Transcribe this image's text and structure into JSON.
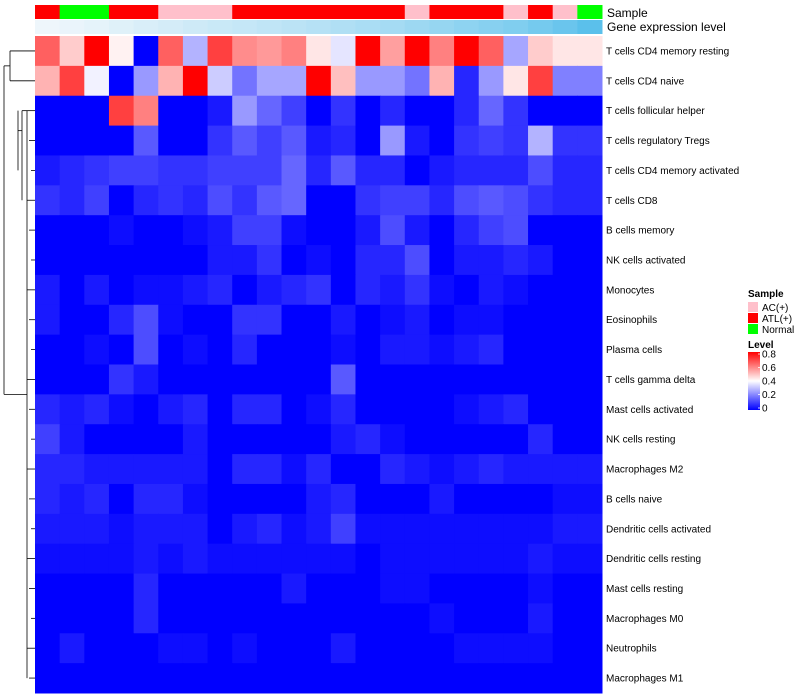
{
  "chart_data": {
    "type": "heatmap",
    "annotation_labels": {
      "sample": "Sample",
      "gene_expression": "Gene expression level"
    },
    "sample_groups": [
      "ATL(+)",
      "Normal",
      "Normal",
      "ATL(+)",
      "ATL(+)",
      "AC(+)",
      "AC(+)",
      "AC(+)",
      "ATL(+)",
      "ATL(+)",
      "ATL(+)",
      "ATL(+)",
      "ATL(+)",
      "ATL(+)",
      "ATL(+)",
      "AC(+)",
      "ATL(+)",
      "ATL(+)",
      "ATL(+)",
      "AC(+)",
      "ATL(+)",
      "AC(+)",
      "Normal"
    ],
    "gene_expression_level": [
      0.0,
      0.03,
      0.06,
      0.1,
      0.14,
      0.18,
      0.22,
      0.25,
      0.28,
      0.31,
      0.35,
      0.38,
      0.42,
      0.46,
      0.5,
      0.55,
      0.6,
      0.65,
      0.7,
      0.75,
      0.82,
      0.9,
      1.0
    ],
    "row_labels": [
      "T cells CD4 memory resting",
      "T cells CD4 naive",
      "T cells follicular helper",
      "T cells regulatory  Tregs",
      "T cells CD4 memory activated",
      "T cells CD8",
      "B cells memory",
      "NK cells activated",
      "Monocytes",
      "Eosinophils",
      "Plasma cells",
      "T cells gamma delta",
      "Mast cells activated",
      "NK cells resting",
      "Macrophages M2",
      "B cells naive",
      "Dendritic cells activated",
      "Dendritic cells resting",
      "Mast cells resting",
      "Macrophages M0",
      "Neutrophils",
      "Macrophages M1"
    ],
    "values": [
      [
        0.65,
        0.48,
        0.8,
        0.42,
        0.0,
        0.65,
        0.28,
        0.7,
        0.58,
        0.56,
        0.6,
        0.44,
        0.36,
        0.8,
        0.55,
        0.8,
        0.6,
        0.8,
        0.65,
        0.26,
        0.48,
        0.44,
        0.44
      ],
      [
        0.52,
        0.7,
        0.38,
        0.0,
        0.24,
        0.52,
        0.8,
        0.32,
        0.18,
        0.26,
        0.26,
        0.8,
        0.5,
        0.24,
        0.24,
        0.18,
        0.52,
        0.06,
        0.24,
        0.44,
        0.7,
        0.2,
        0.2
      ],
      [
        0.0,
        0.0,
        0.0,
        0.7,
        0.6,
        0.0,
        0.0,
        0.04,
        0.24,
        0.16,
        0.1,
        0.0,
        0.08,
        0.0,
        0.06,
        0.0,
        0.0,
        0.06,
        0.16,
        0.08,
        0.0,
        0.0,
        0.0
      ],
      [
        0.0,
        0.0,
        0.0,
        0.0,
        0.14,
        0.0,
        0.0,
        0.08,
        0.14,
        0.1,
        0.14,
        0.04,
        0.06,
        0.0,
        0.24,
        0.04,
        0.0,
        0.08,
        0.1,
        0.08,
        0.28,
        0.08,
        0.08
      ],
      [
        0.04,
        0.06,
        0.08,
        0.1,
        0.1,
        0.08,
        0.08,
        0.1,
        0.1,
        0.1,
        0.16,
        0.06,
        0.14,
        0.06,
        0.06,
        0.0,
        0.04,
        0.06,
        0.06,
        0.06,
        0.12,
        0.06,
        0.06
      ],
      [
        0.08,
        0.06,
        0.1,
        0.0,
        0.06,
        0.08,
        0.06,
        0.12,
        0.08,
        0.14,
        0.16,
        0.0,
        0.0,
        0.08,
        0.1,
        0.1,
        0.06,
        0.12,
        0.14,
        0.12,
        0.08,
        0.06,
        0.06
      ],
      [
        0.0,
        0.0,
        0.0,
        0.02,
        0.0,
        0.0,
        0.02,
        0.04,
        0.1,
        0.1,
        0.02,
        0.0,
        0.0,
        0.04,
        0.12,
        0.04,
        0.0,
        0.06,
        0.1,
        0.12,
        0.0,
        0.0,
        0.0
      ],
      [
        0.0,
        0.0,
        0.0,
        0.0,
        0.0,
        0.0,
        0.0,
        0.04,
        0.04,
        0.08,
        0.0,
        0.02,
        0.0,
        0.06,
        0.06,
        0.12,
        0.0,
        0.04,
        0.04,
        0.06,
        0.04,
        0.0,
        0.0
      ],
      [
        0.04,
        0.0,
        0.04,
        0.0,
        0.02,
        0.02,
        0.04,
        0.06,
        0.0,
        0.04,
        0.06,
        0.08,
        0.0,
        0.06,
        0.04,
        0.08,
        0.02,
        0.0,
        0.04,
        0.02,
        0.0,
        0.0,
        0.0
      ],
      [
        0.04,
        0.0,
        0.0,
        0.06,
        0.12,
        0.02,
        0.0,
        0.0,
        0.08,
        0.08,
        0.0,
        0.0,
        0.04,
        0.0,
        0.02,
        0.04,
        0.0,
        0.02,
        0.02,
        0.0,
        0.0,
        0.0,
        0.0
      ],
      [
        0.0,
        0.0,
        0.02,
        0.0,
        0.12,
        0.0,
        0.02,
        0.0,
        0.06,
        0.0,
        0.0,
        0.0,
        0.02,
        0.0,
        0.04,
        0.04,
        0.02,
        0.04,
        0.06,
        0.0,
        0.0,
        0.0,
        0.0
      ],
      [
        0.0,
        0.0,
        0.0,
        0.08,
        0.04,
        0.0,
        0.0,
        0.0,
        0.0,
        0.0,
        0.0,
        0.0,
        0.14,
        0.0,
        0.0,
        0.0,
        0.0,
        0.0,
        0.0,
        0.0,
        0.0,
        0.0,
        0.0
      ],
      [
        0.06,
        0.04,
        0.06,
        0.02,
        0.0,
        0.04,
        0.06,
        0.0,
        0.06,
        0.06,
        0.0,
        0.02,
        0.06,
        0.0,
        0.0,
        0.0,
        0.0,
        0.02,
        0.04,
        0.06,
        0.0,
        0.0,
        0.0
      ],
      [
        0.1,
        0.04,
        0.0,
        0.0,
        0.0,
        0.0,
        0.04,
        0.0,
        0.0,
        0.0,
        0.0,
        0.0,
        0.04,
        0.06,
        0.02,
        0.0,
        0.0,
        0.0,
        0.0,
        0.0,
        0.06,
        0.0,
        0.0
      ],
      [
        0.06,
        0.06,
        0.04,
        0.04,
        0.04,
        0.04,
        0.04,
        0.0,
        0.06,
        0.06,
        0.02,
        0.06,
        0.0,
        0.0,
        0.06,
        0.04,
        0.02,
        0.04,
        0.06,
        0.04,
        0.04,
        0.04,
        0.04
      ],
      [
        0.06,
        0.04,
        0.06,
        0.0,
        0.06,
        0.06,
        0.02,
        0.0,
        0.0,
        0.0,
        0.0,
        0.04,
        0.06,
        0.0,
        0.0,
        0.0,
        0.04,
        0.0,
        0.0,
        0.0,
        0.0,
        0.02,
        0.02
      ],
      [
        0.04,
        0.04,
        0.04,
        0.02,
        0.04,
        0.04,
        0.04,
        0.0,
        0.04,
        0.06,
        0.02,
        0.04,
        0.1,
        0.02,
        0.02,
        0.02,
        0.02,
        0.02,
        0.02,
        0.02,
        0.02,
        0.04,
        0.04
      ],
      [
        0.02,
        0.02,
        0.02,
        0.02,
        0.04,
        0.02,
        0.04,
        0.02,
        0.02,
        0.02,
        0.02,
        0.02,
        0.02,
        0.0,
        0.02,
        0.02,
        0.02,
        0.02,
        0.02,
        0.02,
        0.04,
        0.02,
        0.02
      ],
      [
        0.0,
        0.0,
        0.0,
        0.0,
        0.06,
        0.0,
        0.0,
        0.0,
        0.0,
        0.0,
        0.04,
        0.0,
        0.0,
        0.0,
        0.02,
        0.02,
        0.0,
        0.0,
        0.0,
        0.0,
        0.02,
        0.0,
        0.0
      ],
      [
        0.0,
        0.0,
        0.0,
        0.0,
        0.06,
        0.0,
        0.0,
        0.0,
        0.0,
        0.0,
        0.0,
        0.0,
        0.0,
        0.0,
        0.0,
        0.0,
        0.02,
        0.0,
        0.0,
        0.0,
        0.04,
        0.0,
        0.0
      ],
      [
        0.0,
        0.04,
        0.0,
        0.0,
        0.0,
        0.02,
        0.02,
        0.0,
        0.02,
        0.0,
        0.0,
        0.0,
        0.04,
        0.0,
        0.0,
        0.0,
        0.0,
        0.02,
        0.02,
        0.02,
        0.02,
        0.0,
        0.0
      ],
      [
        0.0,
        0.0,
        0.0,
        0.0,
        0.0,
        0.0,
        0.0,
        0.0,
        0.0,
        0.0,
        0.0,
        0.0,
        0.0,
        0.0,
        0.0,
        0.0,
        0.0,
        0.0,
        0.0,
        0.0,
        0.0,
        0.0,
        0.0
      ]
    ],
    "dendrogram": {
      "merges": [
        [
          0,
          1
        ],
        [
          16,
          17
        ],
        [
          7,
          8
        ],
        [
          9,
          10
        ]
      ]
    },
    "legend": {
      "sample_title": "Sample",
      "sample_items": [
        {
          "label": "AC(+)",
          "color": "#ffc0cb"
        },
        {
          "label": "ATL(+)",
          "color": "#ff0000"
        },
        {
          "label": "Normal",
          "color": "#00ff00"
        }
      ],
      "level_title": "Level",
      "level_ticks": [
        "0.8",
        "0.6",
        "0.4",
        "0.2",
        "0"
      ],
      "level_range": [
        0,
        0.8
      ]
    },
    "colors": {
      "low": "#0000ff",
      "mid": "#ffffff",
      "high": "#ff0000",
      "annotation_light": "#eef6fb",
      "annotation_dark": "#5bc0eb"
    }
  }
}
